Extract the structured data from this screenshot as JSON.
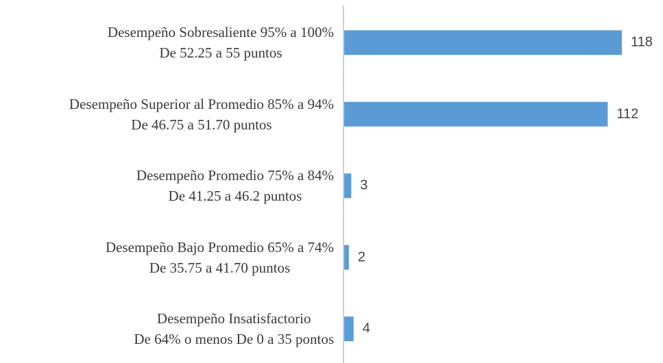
{
  "chart_data": {
    "type": "bar",
    "orientation": "horizontal",
    "categories": [
      "Desempeño Sobresaliente 95% a 100%\nDe 52.25 a 55 puntos",
      "Desempeño Superior al Promedio 85% a 94%\nDe 46.75 a 51.70 puntos",
      "Desempeño Promedio 75% a 84%\nDe 41.25 a 46.2 puntos",
      "Desempeño Bajo Promedio 65% a 74%\nDe 35.75 a 41.70 puntos",
      "Desempeño Insatisfactorio\nDe 64% o menos De 0 a 35 pontos"
    ],
    "values": [
      118,
      112,
      3,
      2,
      4
    ],
    "color": "#5b9bd5"
  }
}
